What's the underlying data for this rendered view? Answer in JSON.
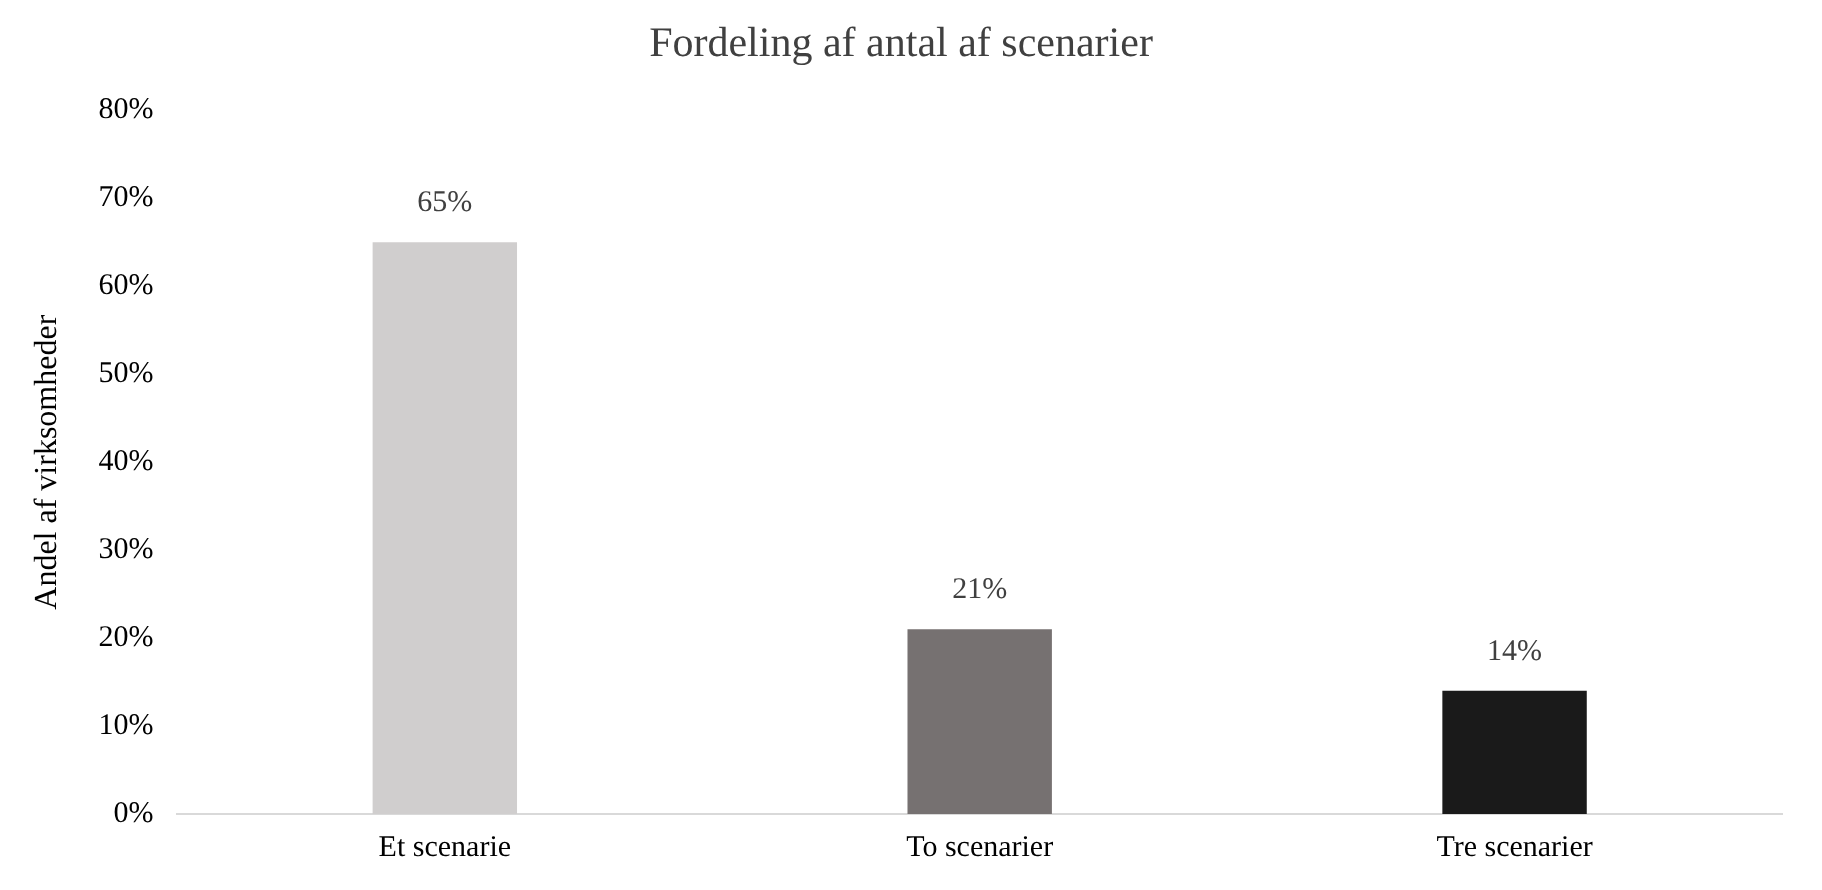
{
  "chart_data": {
    "type": "bar",
    "title": "Fordeling af antal af scenarier",
    "ylabel": "Andel af virksomheder",
    "categories": [
      "Et scenarie",
      "To scenarier",
      "Tre scenarier"
    ],
    "values": [
      65,
      21,
      14
    ],
    "colors": [
      "#d0cece",
      "#767171",
      "#1a1a1a"
    ],
    "value_labels": [
      "65%",
      "21%",
      "14%"
    ],
    "ylim": [
      0,
      80
    ],
    "yticks": [
      {
        "value": 0,
        "label": "0%"
      },
      {
        "value": 10,
        "label": "10%"
      },
      {
        "value": 20,
        "label": "20%"
      },
      {
        "value": 30,
        "label": "30%"
      },
      {
        "value": 40,
        "label": "40%"
      },
      {
        "value": 50,
        "label": "50%"
      },
      {
        "value": 60,
        "label": "60%"
      },
      {
        "value": 70,
        "label": "70%"
      },
      {
        "value": 80,
        "label": "80%"
      }
    ],
    "grid": false,
    "legend": false
  }
}
